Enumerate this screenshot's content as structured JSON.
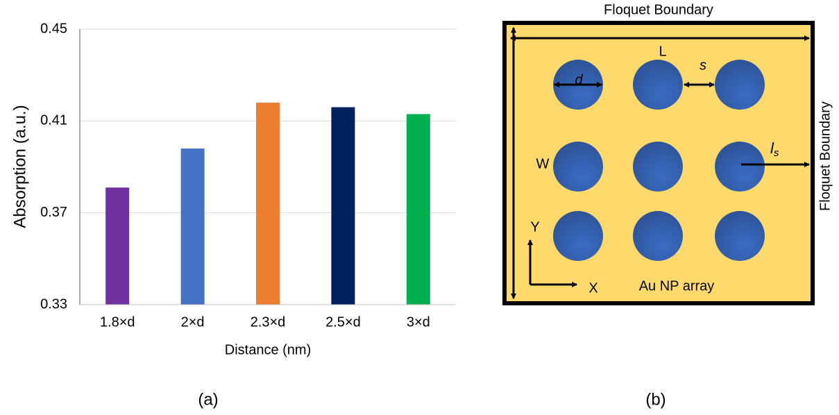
{
  "chart_data": {
    "type": "bar",
    "x_label": "Distance (nm)",
    "y_label": "Absorption (a.u.)",
    "categories": [
      "1.8×d",
      "2×d",
      "2.3×d",
      "2.5×d",
      "3×d"
    ],
    "values": [
      0.381,
      0.398,
      0.418,
      0.416,
      0.413
    ],
    "colors": [
      "#7030a0",
      "#4472c4",
      "#ed7d31",
      "#002060",
      "#00b050"
    ],
    "ylim": [
      0.33,
      0.45
    ],
    "yticks": [
      0.33,
      0.37,
      0.41,
      0.45
    ],
    "grid": true
  },
  "caption_a": "(a)",
  "diagram": {
    "top_boundary": "Floquet Boundary",
    "right_boundary": "Floquet Boundary",
    "L": "L",
    "s": "s",
    "d": "d",
    "W": "W",
    "ls": {
      "main": "l",
      "sub": "s"
    },
    "Y": "Y",
    "X": "X",
    "array_label": "Au NP array"
  },
  "caption_b": "(b)"
}
